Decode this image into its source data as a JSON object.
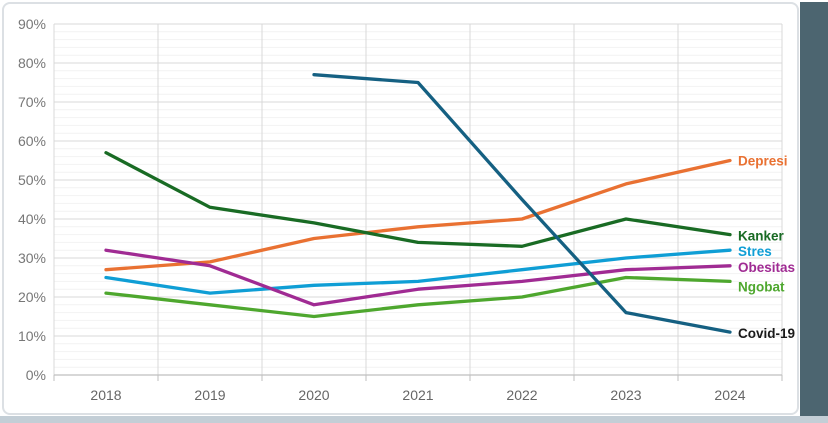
{
  "frame": {
    "background": "#ffffff",
    "card_border_color": "#dce0e4",
    "right_strip_color": "#4c6570",
    "bottom_strip_color": "#c3ced6"
  },
  "axes": {
    "x_label_color": "#666666",
    "y_label_color": "#777777",
    "major_grid_color": "#d9d9d9",
    "minor_grid_color": "#f2f2f2",
    "axis_line_color": "#bfbfbf"
  },
  "chart_data": {
    "type": "line",
    "title": "",
    "xlabel": "",
    "ylabel": "",
    "categories": [
      "2018",
      "2019",
      "2020",
      "2021",
      "2022",
      "2023",
      "2024"
    ],
    "series": [
      {
        "name": "Depresi",
        "color": "#E97132",
        "label_color": "#E97132",
        "label_dy": 1,
        "values": [
          27,
          29,
          35,
          38,
          40,
          49,
          55
        ]
      },
      {
        "name": "Kanker",
        "color": "#196B24",
        "label_color": "#196B24",
        "label_dy": 2,
        "values": [
          57,
          43,
          39,
          34,
          33,
          40,
          36
        ]
      },
      {
        "name": "Stres",
        "color": "#0F9ED5",
        "label_color": "#0F9ED5",
        "label_dy": 2,
        "values": [
          25,
          21,
          23,
          24,
          27,
          30,
          32
        ]
      },
      {
        "name": "Obesitas",
        "color": "#A02B93",
        "label_color": "#A02B93",
        "label_dy": 2,
        "values": [
          32,
          28,
          18,
          22,
          24,
          27,
          28
        ]
      },
      {
        "name": "Ngobat",
        "color": "#4EA72E",
        "label_color": "#4EA72E",
        "label_dy": 6,
        "values": [
          21,
          18,
          15,
          18,
          20,
          25,
          24
        ]
      },
      {
        "name": "Covid-19",
        "color": "#156082",
        "label_color": "#1a1a1a",
        "label_dy": 2,
        "values": [
          null,
          null,
          77,
          75,
          45,
          16,
          11
        ]
      }
    ],
    "ylim": [
      0,
      90
    ],
    "y_major_step": 10,
    "y_minor_step": 2,
    "y_ticks": [
      "0%",
      "10%",
      "20%",
      "30%",
      "40%",
      "50%",
      "60%",
      "70%",
      "80%",
      "90%"
    ],
    "grid": true,
    "legend_position": "end-of-line"
  }
}
